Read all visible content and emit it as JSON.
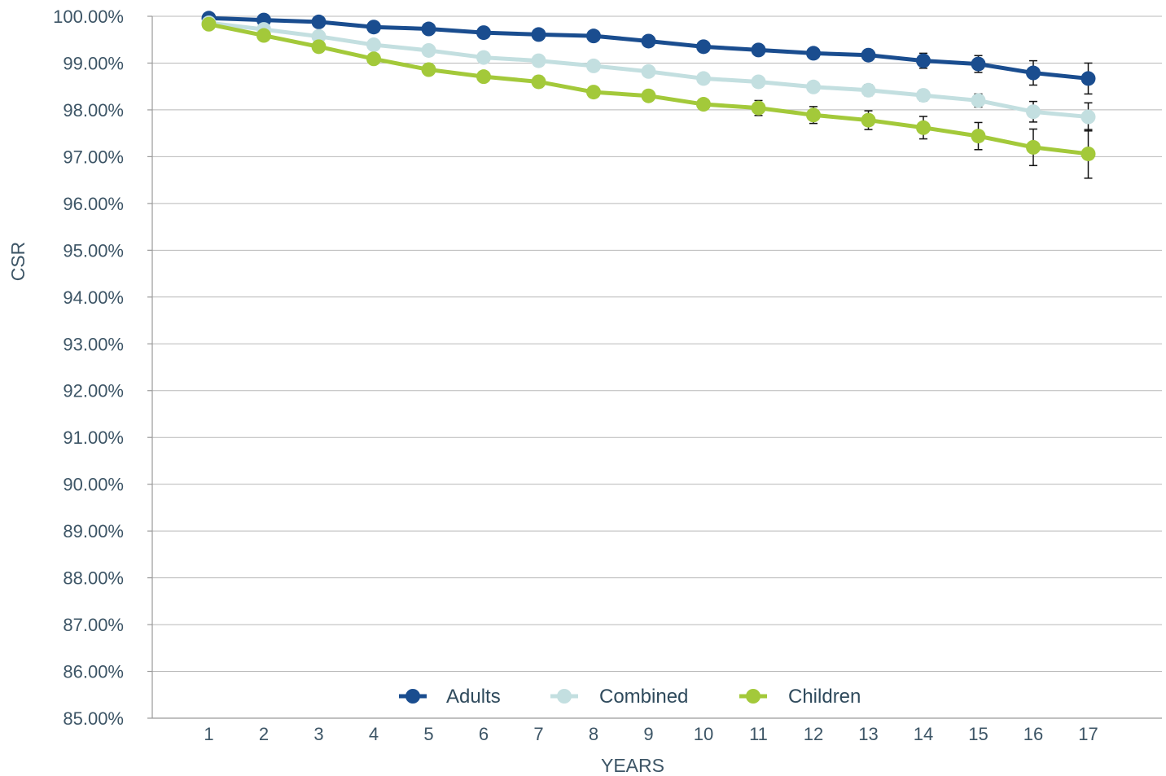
{
  "chart_data": {
    "type": "line",
    "title": "",
    "xlabel": "YEARS",
    "ylabel": "CSR",
    "x": [
      1,
      2,
      3,
      4,
      5,
      6,
      7,
      8,
      9,
      10,
      11,
      12,
      13,
      14,
      15,
      16,
      17
    ],
    "y_ticks": [
      "85.00%",
      "86.00%",
      "87.00%",
      "88.00%",
      "89.00%",
      "90.00%",
      "91.00%",
      "92.00%",
      "93.00%",
      "94.00%",
      "95.00%",
      "96.00%",
      "97.00%",
      "98.00%",
      "99.00%",
      "100.00%"
    ],
    "ylim": [
      85,
      100
    ],
    "unit": "%",
    "grid": true,
    "legend_position": "bottom-center",
    "series": [
      {
        "name": "Adults",
        "color": "#1a4d8f",
        "values": [
          99.96,
          99.92,
          99.88,
          99.77,
          99.73,
          99.65,
          99.61,
          99.58,
          99.47,
          99.35,
          99.28,
          99.21,
          99.17,
          99.05,
          98.98,
          98.79,
          98.67
        ],
        "error": [
          0.03,
          0.03,
          0.04,
          0.05,
          0.06,
          0.06,
          0.07,
          0.07,
          0.08,
          0.09,
          0.1,
          0.1,
          0.12,
          0.16,
          0.18,
          0.26,
          0.33
        ]
      },
      {
        "name": "Combined",
        "color": "#c3dfe0",
        "values": [
          99.86,
          99.72,
          99.57,
          99.39,
          99.27,
          99.12,
          99.05,
          98.94,
          98.82,
          98.67,
          98.6,
          98.49,
          98.42,
          98.31,
          98.2,
          97.96,
          97.85
        ],
        "error": [
          0.03,
          0.04,
          0.04,
          0.05,
          0.06,
          0.06,
          0.07,
          0.08,
          0.08,
          0.09,
          0.1,
          0.1,
          0.12,
          0.12,
          0.14,
          0.22,
          0.3
        ]
      },
      {
        "name": "Children",
        "color": "#a3c93a",
        "values": [
          99.83,
          99.59,
          99.35,
          99.09,
          98.86,
          98.71,
          98.6,
          98.38,
          98.3,
          98.12,
          98.04,
          97.89,
          97.78,
          97.62,
          97.44,
          97.2,
          97.06
        ],
        "error": [
          0.04,
          0.05,
          0.06,
          0.07,
          0.08,
          0.09,
          0.12,
          0.1,
          0.1,
          0.1,
          0.16,
          0.18,
          0.2,
          0.24,
          0.29,
          0.39,
          0.52
        ]
      }
    ]
  }
}
